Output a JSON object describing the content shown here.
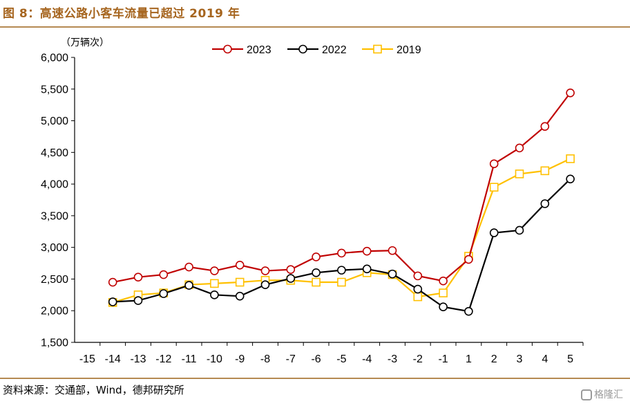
{
  "figure": {
    "title": "图 8：高速公路小客车流量已超过 2019 年",
    "source": "资料来源：交通部，Wind，德邦研究所",
    "watermark": "格隆汇"
  },
  "colors": {
    "2023": "#c00000",
    "2022": "#000000",
    "2019": "#ffc000",
    "rule": "#b58a52",
    "title": "#a6651f"
  },
  "chart_data": {
    "type": "line",
    "unit_label": "（万辆次）",
    "categories": [
      "-15",
      "-14",
      "-13",
      "-12",
      "-11",
      "-10",
      "-9",
      "-8",
      "-7",
      "-6",
      "-5",
      "-4",
      "-3",
      "-2",
      "-1",
      "1",
      "2",
      "3",
      "4",
      "5"
    ],
    "y_ticks": [
      "1,500",
      "2,000",
      "2,500",
      "3,000",
      "3,500",
      "4,000",
      "4,500",
      "5,000",
      "5,500",
      "6,000"
    ],
    "ylim": [
      1500,
      6000
    ],
    "grid": false,
    "legend_position": "top-right",
    "series": [
      {
        "name": "2023",
        "marker": "circle",
        "color": "#c00000",
        "values": [
          null,
          2450,
          2530,
          2570,
          2690,
          2630,
          2720,
          2630,
          2650,
          2850,
          2910,
          2940,
          2950,
          2550,
          2470,
          2810,
          4320,
          4570,
          4910,
          5440
        ]
      },
      {
        "name": "2022",
        "marker": "circle",
        "color": "#000000",
        "values": [
          null,
          2140,
          2160,
          2270,
          2400,
          2250,
          2230,
          2410,
          2510,
          2600,
          2640,
          2660,
          2580,
          2340,
          2060,
          1990,
          3230,
          3270,
          3690,
          4080
        ]
      },
      {
        "name": "2019",
        "marker": "square",
        "color": "#ffc000",
        "values": [
          null,
          2130,
          2250,
          2280,
          2410,
          2430,
          2450,
          2480,
          2480,
          2450,
          2450,
          2600,
          2570,
          2220,
          2280,
          2860,
          3950,
          4160,
          4210,
          4400
        ]
      }
    ]
  }
}
